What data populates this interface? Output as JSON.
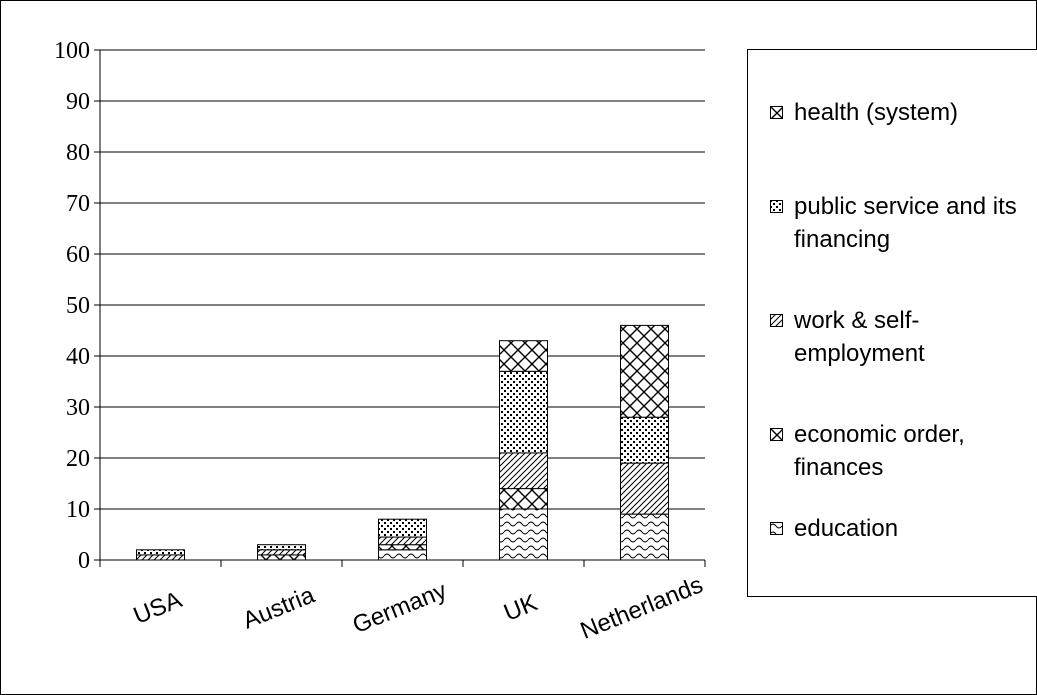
{
  "chart_data": {
    "type": "bar",
    "stacked": true,
    "categories": [
      "USA",
      "Austria",
      "Germany",
      "UK",
      "Netherlands"
    ],
    "series": [
      {
        "name": "education",
        "pattern": "wave",
        "values": [
          0,
          0,
          2,
          10,
          9
        ]
      },
      {
        "name": "economic order, finances",
        "pattern": "weave",
        "values": [
          0,
          1,
          1,
          4,
          0
        ]
      },
      {
        "name": "work & self-employment",
        "pattern": "diag",
        "values": [
          1,
          1,
          1.5,
          7,
          10
        ]
      },
      {
        "name": "public service and its financing",
        "pattern": "dots",
        "values": [
          1,
          1,
          3.5,
          16,
          9
        ]
      },
      {
        "name": "health (system)",
        "pattern": "weave",
        "values": [
          0,
          0,
          0,
          6,
          18
        ]
      }
    ],
    "ylim": [
      0,
      100
    ],
    "yticks": [
      0,
      10,
      20,
      30,
      40,
      50,
      60,
      70,
      80,
      90,
      100
    ],
    "grid": true,
    "legend": "right",
    "legend_order": [
      "health (system)",
      "public service and its financing",
      "work & self-employment",
      "economic order, finances",
      "education"
    ]
  }
}
